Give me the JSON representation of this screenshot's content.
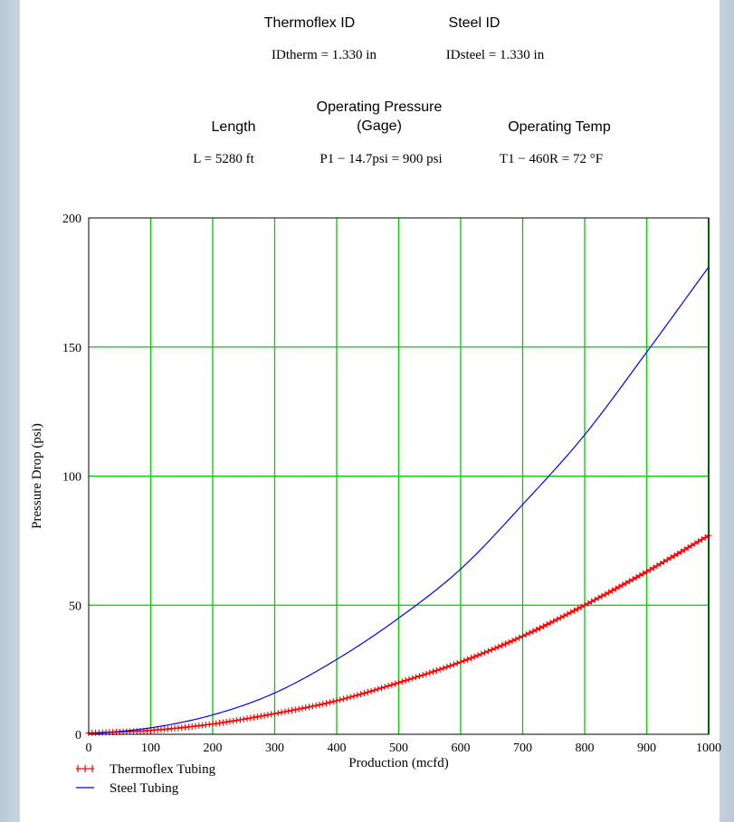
{
  "header": {
    "thermoflex_id_label": "Thermoflex ID",
    "steel_id_label": "Steel ID",
    "id_therm_expr": "IDtherm = 1.330 in",
    "id_steel_expr": "IDsteel = 1.330 in",
    "operating_pressure_label_line1": "Operating Pressure",
    "operating_pressure_label_line2": "(Gage)",
    "length_label": "Length",
    "operating_temp_label": "Operating Temp",
    "length_expr": "L = 5280 ft",
    "pressure_expr": "P1 − 14.7psi = 900 psi",
    "temp_expr": "T1 − 460R = 72 °F"
  },
  "chart_data": {
    "type": "line",
    "xlabel": "Production (mcfd)",
    "ylabel": "Pressure Drop (psi)",
    "xlim": [
      0,
      1000
    ],
    "ylim": [
      0,
      200
    ],
    "x_ticks": [
      "0",
      "100",
      "200",
      "300",
      "400",
      "500",
      "600",
      "700",
      "800",
      "900",
      "1000"
    ],
    "y_ticks": [
      "0",
      "50",
      "100",
      "150",
      "200"
    ],
    "grid": true,
    "grid_color": "#00cc00",
    "legend_placement": "bottom-left, below plot",
    "series": [
      {
        "name": "Thermoflex Tubing",
        "color": "#ff0000",
        "marker": "+",
        "x": [
          0,
          100,
          200,
          300,
          400,
          500,
          600,
          700,
          800,
          900,
          1000
        ],
        "y": [
          0.5,
          1.5,
          4,
          8,
          13,
          20,
          28,
          38,
          50,
          63,
          77
        ]
      },
      {
        "name": "Steel Tubing",
        "color": "#0000ff",
        "marker": "none",
        "x": [
          0,
          100,
          200,
          300,
          400,
          500,
          600,
          700,
          800,
          900,
          1000
        ],
        "y": [
          0,
          2.5,
          7.5,
          16,
          29,
          45,
          64,
          89,
          116,
          148,
          181
        ]
      }
    ]
  }
}
